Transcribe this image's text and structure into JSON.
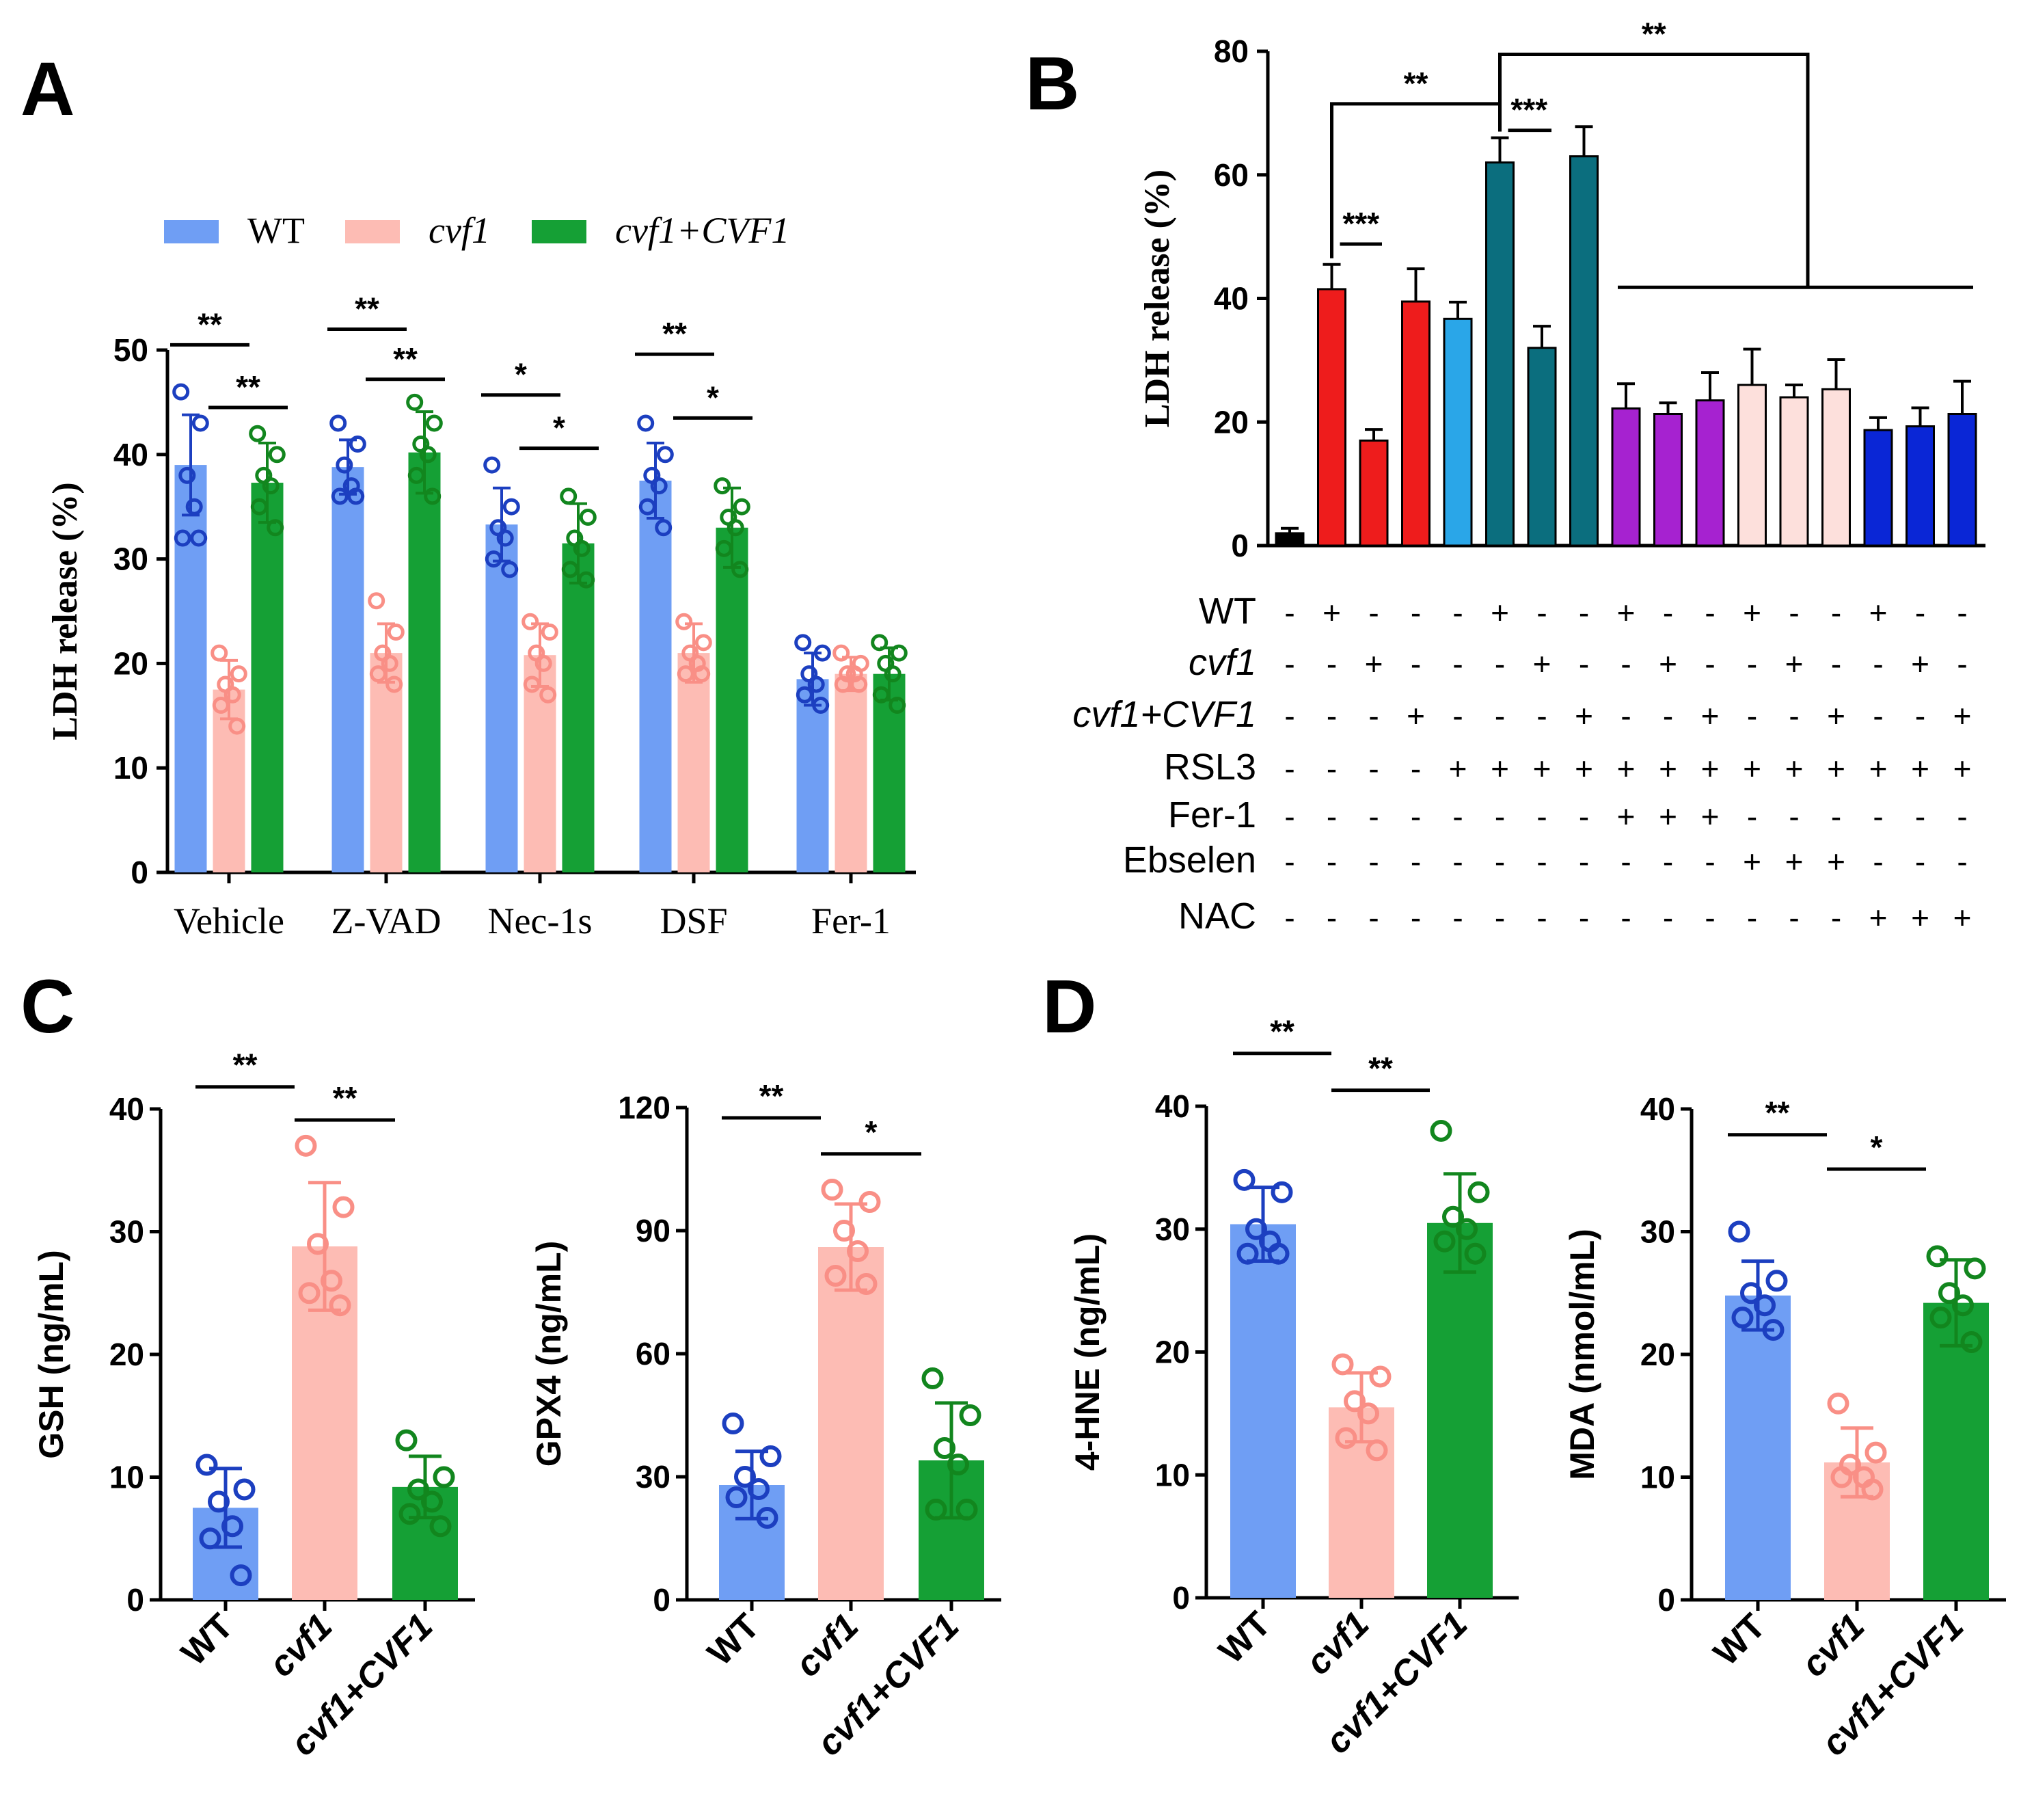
{
  "figure": {
    "panel_labels": [
      "A",
      "B",
      "C",
      "D"
    ]
  },
  "chart_data": [
    {
      "id": "A",
      "type": "bar",
      "ylabel": "LDH release (%)",
      "ylim": [
        0,
        50
      ],
      "yticks": [
        0,
        10,
        20,
        30,
        40,
        50
      ],
      "categories": [
        "Vehicle",
        "Z-VAD",
        "Nec-1s",
        "DSF",
        "Fer-1"
      ],
      "legend": [
        {
          "label": "WT",
          "italic": false,
          "color": "#6f9ef4"
        },
        {
          "label": "cvf1",
          "italic": true,
          "color": "#fdbcb4"
        },
        {
          "label": "cvf1+CVF1",
          "italic": true,
          "color": "#15a035"
        }
      ],
      "series": [
        {
          "name": "WT",
          "values": [
            39,
            38.8,
            33.3,
            37.5,
            18.5
          ],
          "errors": [
            4.8,
            2.6,
            3.5,
            3.6,
            2.5
          ],
          "bar_color": "#6f9ef4",
          "dot_color": "#1c3fc0",
          "points": [
            [
              46,
              43,
              38,
              35,
              32,
              32
            ],
            [
              43,
              41,
              39,
              37,
              36,
              36
            ],
            [
              39,
              35,
              33,
              32,
              30,
              29
            ],
            [
              43,
              40,
              38,
              37,
              35,
              33
            ],
            [
              22,
              21,
              19,
              18,
              17,
              16
            ]
          ]
        },
        {
          "name": "cvf1",
          "values": [
            17.5,
            21,
            20.8,
            21,
            19
          ],
          "errors": [
            2.8,
            2.8,
            3.0,
            2.8,
            1.6
          ],
          "bar_color": "#fdbcb4",
          "dot_color": "#f98f86",
          "points": [
            [
              21,
              19,
              18,
              17,
              16,
              14
            ],
            [
              26,
              23,
              21,
              20,
              19,
              18
            ],
            [
              24,
              23,
              21,
              20,
              18,
              17
            ],
            [
              24,
              22,
              21,
              20,
              19,
              19
            ],
            [
              21,
              20,
              19,
              19,
              18,
              18
            ]
          ]
        },
        {
          "name": "cvf1+CVF1",
          "values": [
            37.3,
            40.2,
            31.5,
            33,
            19
          ],
          "errors": [
            3.8,
            3.9,
            3.8,
            3.8,
            2.5
          ],
          "bar_color": "#15a035",
          "dot_color": "#12861e",
          "points": [
            [
              42,
              40,
              38,
              37,
              35,
              33
            ],
            [
              45,
              43,
              41,
              40,
              38,
              36
            ],
            [
              36,
              34,
              32,
              31,
              29,
              28
            ],
            [
              37,
              35,
              34,
              33,
              31,
              29
            ],
            [
              22,
              21,
              20,
              19,
              17,
              16
            ]
          ]
        }
      ],
      "significance": [
        {
          "group": 0,
          "from": 0,
          "to": 1,
          "y": 50.5,
          "label": "**"
        },
        {
          "group": 0,
          "from": 1,
          "to": 2,
          "y": 44.5,
          "label": "**"
        },
        {
          "group": 1,
          "from": 0,
          "to": 1,
          "y": 52,
          "label": "**"
        },
        {
          "group": 1,
          "from": 1,
          "to": 2,
          "y": 47.2,
          "label": "**"
        },
        {
          "group": 2,
          "from": 0,
          "to": 1,
          "y": 45.7,
          "label": "*"
        },
        {
          "group": 2,
          "from": 1,
          "to": 2,
          "y": 40.6,
          "label": "*"
        },
        {
          "group": 3,
          "from": 0,
          "to": 1,
          "y": 49.6,
          "label": "**"
        },
        {
          "group": 3,
          "from": 1,
          "to": 2,
          "y": 43.5,
          "label": "*"
        }
      ]
    },
    {
      "id": "B",
      "type": "bar",
      "ylabel": "LDH release (%)",
      "ylim": [
        0,
        80
      ],
      "yticks": [
        0,
        20,
        40,
        60,
        80
      ],
      "values": [
        2,
        41.5,
        17,
        39.5,
        36.7,
        62,
        32,
        63,
        22.2,
        21.3,
        23.5,
        26,
        24,
        25.3,
        18.7,
        19.3,
        21.3
      ],
      "errors": [
        0.8,
        4.0,
        1.8,
        5.3,
        2.7,
        4.0,
        3.5,
        4.8,
        4.0,
        1.8,
        4.5,
        5.8,
        2.0,
        4.8,
        2.0,
        3.0,
        5.3
      ],
      "colors": [
        "#000000",
        "#ee1c1c",
        "#ee1c1c",
        "#ee1c1c",
        "#2aa6e8",
        "#0b6e7e",
        "#0b6e7e",
        "#0b6e7e",
        "#a622d0",
        "#a622d0",
        "#a622d0",
        "#fde0dc",
        "#fde0dc",
        "#fde0dc",
        "#0a26d6",
        "#0a26d6",
        "#0a26d6"
      ],
      "condition_rows": [
        {
          "label": "WT",
          "italic": false,
          "signs": [
            "-",
            "+",
            "-",
            "-",
            "-",
            "+",
            "-",
            "-",
            "+",
            "-",
            "-",
            "+",
            "-",
            "-",
            "+",
            "-",
            "-"
          ]
        },
        {
          "label": "cvf1",
          "italic": true,
          "signs": [
            "-",
            "-",
            "+",
            "-",
            "-",
            "-",
            "+",
            "-",
            "-",
            "+",
            "-",
            "-",
            "+",
            "-",
            "-",
            "+",
            "-"
          ]
        },
        {
          "label": "cvf1+CVF1",
          "italic": true,
          "signs": [
            "-",
            "-",
            "-",
            "+",
            "-",
            "-",
            "-",
            "+",
            "-",
            "-",
            "+",
            "-",
            "-",
            "+",
            "-",
            "-",
            "+"
          ]
        },
        {
          "label": "RSL3",
          "italic": false,
          "signs": [
            "-",
            "-",
            "-",
            "-",
            "+",
            "+",
            "+",
            "+",
            "+",
            "+",
            "+",
            "+",
            "+",
            "+",
            "+",
            "+",
            "+"
          ]
        },
        {
          "label": "Fer-1",
          "italic": false,
          "signs": [
            "-",
            "-",
            "-",
            "-",
            "-",
            "-",
            "-",
            "-",
            "+",
            "+",
            "+",
            "-",
            "-",
            "-",
            "-",
            "-",
            "-"
          ]
        },
        {
          "label": "Ebselen",
          "italic": false,
          "signs": [
            "-",
            "-",
            "-",
            "-",
            "-",
            "-",
            "-",
            "-",
            "-",
            "-",
            "-",
            "+",
            "+",
            "+",
            "-",
            "-",
            "-"
          ]
        },
        {
          "label": "NAC",
          "italic": false,
          "signs": [
            "-",
            "-",
            "-",
            "-",
            "-",
            "-",
            "-",
            "-",
            "-",
            "-",
            "-",
            "-",
            "-",
            "-",
            "+",
            "+",
            "+"
          ]
        }
      ],
      "significance": [
        {
          "label": "***",
          "between": [
            1,
            2
          ],
          "y": 48.8
        },
        {
          "label": "**",
          "between": [
            1,
            5
          ],
          "y": 71.5
        },
        {
          "label": "***",
          "between": [
            5,
            6
          ],
          "y": 67.2
        },
        {
          "label": "**",
          "between": [
            5,
            16
          ],
          "y": 79.5
        }
      ]
    },
    {
      "id": "C-GSH",
      "type": "bar",
      "ylabel": "GSH (ng/mL)",
      "ylim": [
        0,
        40
      ],
      "yticks": [
        0,
        10,
        20,
        30,
        40
      ],
      "categories": [
        "WT",
        "cvf1",
        "cvf1+CVF1"
      ],
      "italic_categories": [
        false,
        true,
        true
      ],
      "values": [
        7.5,
        28.8,
        9.2
      ],
      "errors": [
        3.2,
        5.2,
        2.5
      ],
      "bar_colors": [
        "#6f9ef4",
        "#fdbcb4",
        "#15a035"
      ],
      "dot_colors": [
        "#1c3fc0",
        "#f98f86",
        "#12861e"
      ],
      "points": [
        [
          11,
          9,
          8,
          6,
          5,
          2
        ],
        [
          37,
          32,
          29,
          26,
          25,
          24
        ],
        [
          13,
          10,
          9,
          8,
          7,
          6
        ]
      ],
      "significance": [
        {
          "from": 0,
          "to": 1,
          "y": 41.8,
          "label": "**"
        },
        {
          "from": 1,
          "to": 2,
          "y": 39.1,
          "label": "**"
        }
      ]
    },
    {
      "id": "C-GPX4",
      "type": "bar",
      "ylabel": "GPX4 (ng/mL)",
      "ylim": [
        0,
        120
      ],
      "yticks": [
        0,
        30,
        60,
        90,
        120
      ],
      "categories": [
        "WT",
        "cvf1",
        "cvf1+CVF1"
      ],
      "italic_categories": [
        false,
        true,
        true
      ],
      "values": [
        28,
        86,
        34
      ],
      "errors": [
        8.2,
        10.5,
        14
      ],
      "bar_colors": [
        "#6f9ef4",
        "#fdbcb4",
        "#15a035"
      ],
      "dot_colors": [
        "#1c3fc0",
        "#f98f86",
        "#12861e"
      ],
      "points": [
        [
          43,
          35,
          30,
          27,
          25,
          20
        ],
        [
          100,
          97,
          90,
          85,
          79,
          77
        ],
        [
          54,
          45,
          37,
          33,
          22,
          22
        ]
      ],
      "significance": [
        {
          "from": 0,
          "to": 1,
          "y": 117.5,
          "label": "**"
        },
        {
          "from": 1,
          "to": 2,
          "y": 108.7,
          "label": "*"
        }
      ]
    },
    {
      "id": "D-4HNE",
      "type": "bar",
      "ylabel": "4-HNE (ng/mL)",
      "ylim": [
        0,
        40
      ],
      "yticks": [
        0,
        10,
        20,
        30,
        40
      ],
      "categories": [
        "WT",
        "cvf1",
        "cvf1+CVF1"
      ],
      "italic_categories": [
        false,
        true,
        true
      ],
      "values": [
        30.4,
        15.5,
        30.5
      ],
      "errors": [
        3,
        2.8,
        4
      ],
      "bar_colors": [
        "#6f9ef4",
        "#fdbcb4",
        "#15a035"
      ],
      "dot_colors": [
        "#1c3fc0",
        "#f98f86",
        "#12861e"
      ],
      "points": [
        [
          34,
          33,
          30,
          29,
          28,
          28
        ],
        [
          19,
          18,
          16,
          15,
          13,
          12
        ],
        [
          38,
          33,
          31,
          30,
          29,
          28
        ]
      ],
      "significance": [
        {
          "from": 0,
          "to": 1,
          "y": 44.3,
          "label": "**"
        },
        {
          "from": 1,
          "to": 2,
          "y": 41.3,
          "label": "**"
        }
      ]
    },
    {
      "id": "D-MDA",
      "type": "bar",
      "ylabel": "MDA (nmol/mL)",
      "ylim": [
        0,
        40
      ],
      "yticks": [
        0,
        10,
        20,
        30,
        40
      ],
      "categories": [
        "WT",
        "cvf1",
        "cvf1+CVF1"
      ],
      "italic_categories": [
        false,
        true,
        true
      ],
      "values": [
        24.8,
        11.2,
        24.2
      ],
      "errors": [
        2.8,
        2.8,
        3.5
      ],
      "bar_colors": [
        "#6f9ef4",
        "#fdbcb4",
        "#15a035"
      ],
      "dot_colors": [
        "#1c3fc0",
        "#f98f86",
        "#12861e"
      ],
      "points": [
        [
          30,
          26,
          25,
          24,
          23,
          22
        ],
        [
          16,
          12,
          11,
          10,
          10,
          9
        ],
        [
          28,
          27,
          25,
          24,
          23,
          21
        ]
      ],
      "significance": [
        {
          "from": 0,
          "to": 1,
          "y": 37.9,
          "label": "**"
        },
        {
          "from": 1,
          "to": 2,
          "y": 35.1,
          "label": "*"
        }
      ]
    }
  ]
}
